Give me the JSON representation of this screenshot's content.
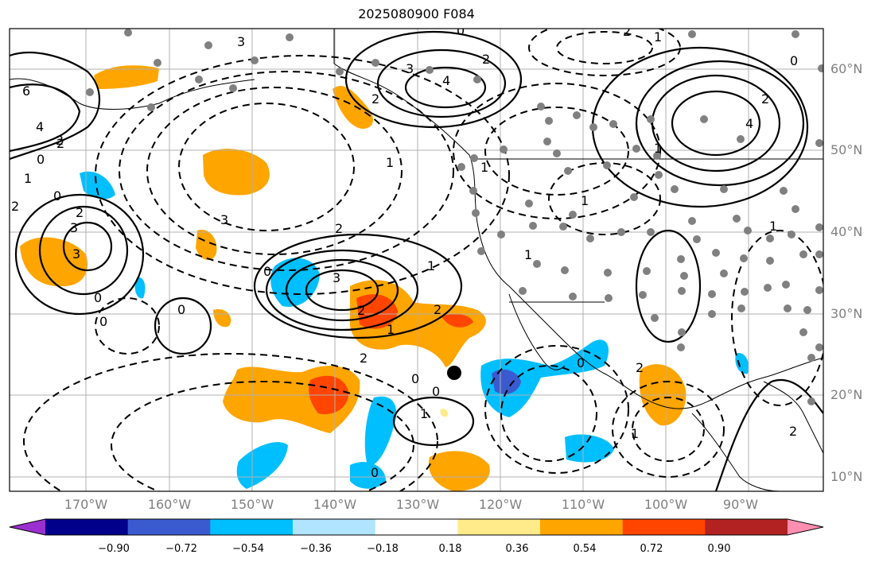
{
  "title": "2025080900 F084",
  "latitude_labels": [
    "60°N",
    "50°N",
    "40°N",
    "30°N",
    "20°N",
    "10°N"
  ],
  "longitude_labels": [
    "170°W",
    "160°W",
    "150°W",
    "140°W",
    "130°W",
    "120°W",
    "110°W",
    "100°W",
    "90°W"
  ],
  "colorbar": {
    "ticks": [
      "−0.90",
      "−0.72",
      "−0.54",
      "−0.36",
      "−0.18",
      "0.18",
      "0.36",
      "0.54",
      "0.72",
      "0.90"
    ],
    "colors": [
      "#9b30d0",
      "#00008b",
      "#3a5bd0",
      "#00bfff",
      "#b0e4ff",
      "#ffffff",
      "#ffeb8a",
      "#ffa500",
      "#ff4500",
      "#b22222",
      "#ff8fb0"
    ]
  },
  "contour_labels": [
    "3",
    "2",
    "4",
    "0",
    "1",
    "3",
    "2",
    "1",
    "2",
    "1",
    "4",
    "2",
    "1",
    "0",
    "1",
    "2",
    "3",
    "2",
    "3",
    "2",
    "1",
    "0",
    "1",
    "2",
    "3",
    "0",
    "3",
    "2",
    "0",
    "0",
    "2",
    "1",
    "2",
    "0",
    "0",
    "0",
    "1",
    "0",
    "0",
    "2",
    "1",
    "6",
    "4",
    "2",
    "1",
    "0",
    "2",
    "1"
  ],
  "marker": "storm-center-dot"
}
